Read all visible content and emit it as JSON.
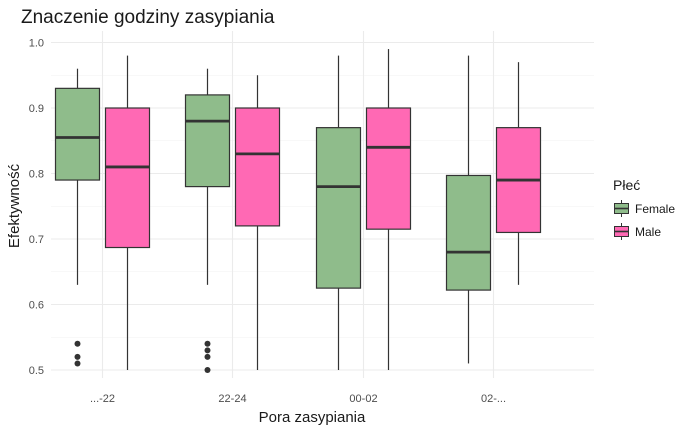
{
  "chart_data": {
    "type": "boxplot",
    "title": "Znaczenie godziny zasypiania",
    "xlabel": "Pora zasypiania",
    "ylabel": "Efektywność",
    "categories": [
      "...-22",
      "22-24",
      "00-02",
      "02-..."
    ],
    "ylim": [
      0.5,
      1.0
    ],
    "yticks": [
      "0.5",
      "0.6",
      "0.7",
      "0.8",
      "0.9",
      "1.0"
    ],
    "grid": true,
    "legend": {
      "title": "Płeć",
      "position": "right",
      "entries": [
        "Female",
        "Male"
      ]
    },
    "series": [
      {
        "name": "Female",
        "color": "#8fbc8b",
        "boxes": [
          {
            "category": "...-22",
            "min": 0.63,
            "q1": 0.79,
            "median": 0.855,
            "q3": 0.93,
            "max": 0.96,
            "outliers": [
              0.54,
              0.52,
              0.51
            ]
          },
          {
            "category": "22-24",
            "min": 0.63,
            "q1": 0.78,
            "median": 0.88,
            "q3": 0.92,
            "max": 0.96,
            "outliers": [
              0.54,
              0.53,
              0.52,
              0.5
            ]
          },
          {
            "category": "00-02",
            "min": 0.5,
            "q1": 0.625,
            "median": 0.78,
            "q3": 0.87,
            "max": 0.98,
            "outliers": []
          },
          {
            "category": "02-...",
            "min": 0.51,
            "q1": 0.622,
            "median": 0.68,
            "q3": 0.797,
            "max": 0.98,
            "outliers": []
          }
        ]
      },
      {
        "name": "Male",
        "color": "#ff69b4",
        "boxes": [
          {
            "category": "...-22",
            "min": 0.5,
            "q1": 0.687,
            "median": 0.81,
            "q3": 0.9,
            "max": 0.98,
            "outliers": []
          },
          {
            "category": "22-24",
            "min": 0.5,
            "q1": 0.72,
            "median": 0.83,
            "q3": 0.9,
            "max": 0.95,
            "outliers": []
          },
          {
            "category": "00-02",
            "min": 0.5,
            "q1": 0.715,
            "median": 0.84,
            "q3": 0.9,
            "max": 0.99,
            "outliers": []
          },
          {
            "category": "02-...",
            "min": 0.63,
            "q1": 0.71,
            "median": 0.79,
            "q3": 0.87,
            "max": 0.97,
            "outliers": []
          }
        ]
      }
    ]
  }
}
